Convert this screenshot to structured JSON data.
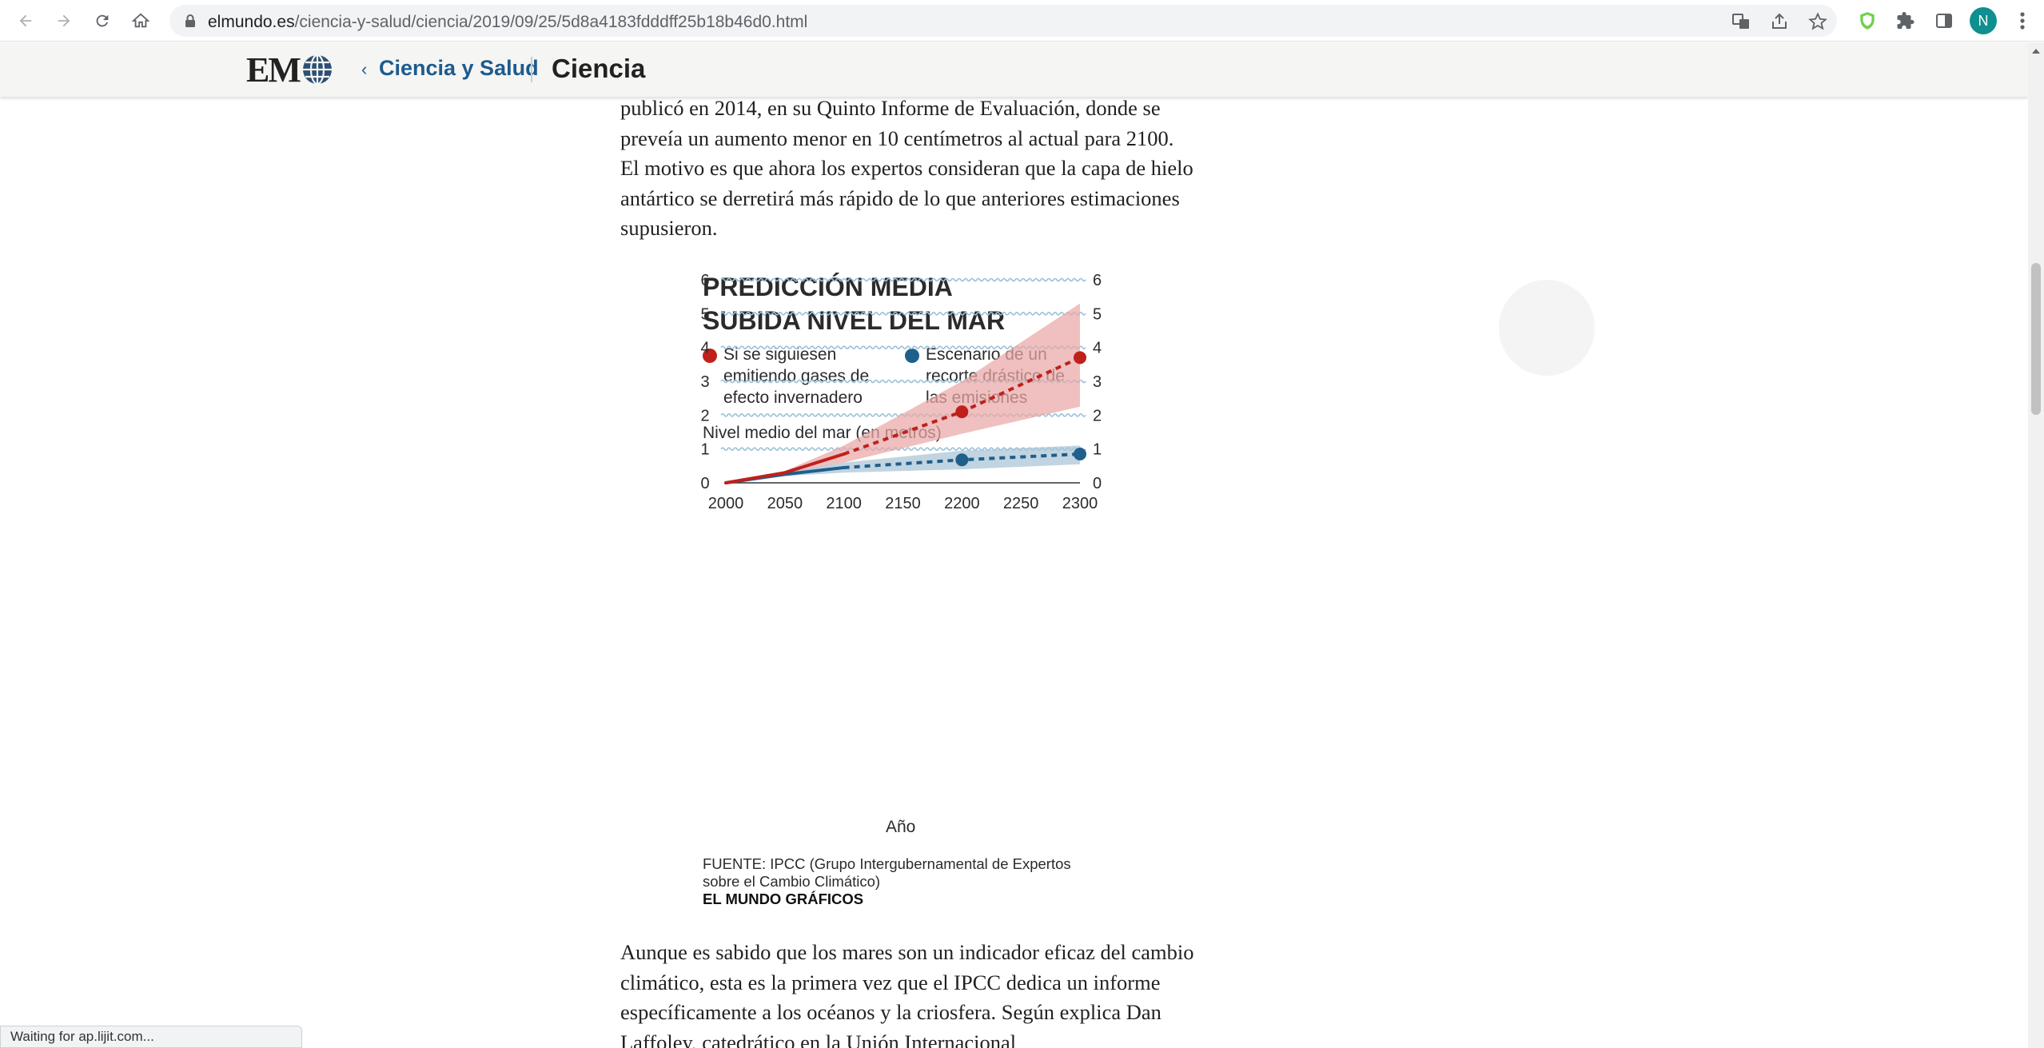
{
  "browser": {
    "url_host": "elmundo.es",
    "url_path": "/ciencia-y-salud/ciencia/2019/09/25/5d8a4183fdddff25b18b46d0.html",
    "profile_initial": "N",
    "status_text": "Waiting for ap.lijit.com..."
  },
  "site_header": {
    "logo_text": "EM",
    "section": "Ciencia y Salud",
    "subsection": "Ciencia",
    "chevron": "‹"
  },
  "article": {
    "para_top": "publicó en 2014, en su Quinto Informe de Evaluación, donde se preveía un aumento menor en 10 centímetros al actual para 2100. El motivo es que ahora los expertos consideran que la capa de hielo antártico se derretirá más rápido de lo que anteriores estimaciones supusieron.",
    "para_bottom": "Aunque es sabido que los mares son un indicador eficaz del cambio climático, esta es la primera vez que el IPCC dedica un informe específicamente a los océanos y la criosfera. Según explica Dan Laffoley, catedrático en la Unión Internacional"
  },
  "chart_data": {
    "type": "line",
    "title": "PREDICCIÓN MEDIA SUBIDA NIVEL DEL MAR",
    "ylabel": "Nivel medio del mar (en metros)",
    "xlabel": "Año",
    "xlim": [
      2000,
      2300
    ],
    "ylim": [
      0,
      6
    ],
    "x_ticks": [
      2000,
      2050,
      2100,
      2150,
      2200,
      2250,
      2300
    ],
    "y_ticks": [
      0,
      1,
      2,
      3,
      4,
      5,
      6
    ],
    "grid": true,
    "legend_placement": "top",
    "series": [
      {
        "name": "Si se siguiesen emitiendo gases de efecto invernadero",
        "color": "#c0201c",
        "band_color": "#e9a8a6",
        "x": [
          2000,
          2050,
          2100,
          2200,
          2300
        ],
        "y": [
          0.0,
          0.3,
          0.85,
          2.1,
          3.7
        ],
        "lower": [
          0.0,
          0.25,
          0.6,
          1.45,
          2.25
        ],
        "upper": [
          0.0,
          0.35,
          1.1,
          3.0,
          5.3
        ],
        "markers_at": [
          2200,
          2300
        ]
      },
      {
        "name": "Escenario de un recorte drástico de las emisiones",
        "color": "#1f5f8b",
        "band_color": "#a9c3d6",
        "x": [
          2000,
          2050,
          2100,
          2200,
          2300
        ],
        "y": [
          0.0,
          0.25,
          0.45,
          0.68,
          0.85
        ],
        "lower": [
          0.0,
          0.2,
          0.3,
          0.4,
          0.55
        ],
        "upper": [
          0.0,
          0.3,
          0.6,
          0.95,
          1.1
        ],
        "markers_at": [
          2200,
          2300
        ]
      }
    ],
    "source": "FUENTE: IPCC (Grupo Intergubernamental de Expertos sobre el Cambio Climático)",
    "credit": "EL MUNDO GRÁFICOS"
  },
  "colors": {
    "brand_blue": "#1c5b8e",
    "wave": "#9bc1d6"
  }
}
